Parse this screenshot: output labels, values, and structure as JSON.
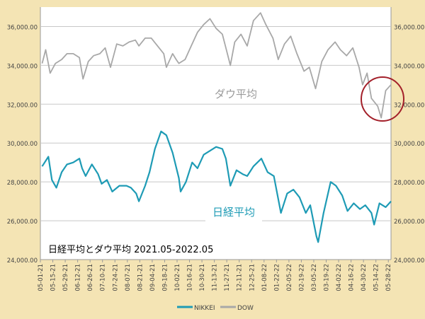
{
  "chart_data": {
    "type": "line",
    "title": "日経平均とダウ平均 2021.05-2022.05",
    "annotations": [
      "ダウ平均",
      "日経平均"
    ],
    "xlabel": "",
    "ylabel": "",
    "ylim": [
      24000,
      37000
    ],
    "y_ticks": [
      "24,000.00",
      "26,000.00",
      "28,000.00",
      "30,000.00",
      "32,000.00",
      "34,000.00",
      "36,000.00"
    ],
    "y_tick_values": [
      24000,
      26000,
      28000,
      30000,
      32000,
      34000,
      36000
    ],
    "x_tick_labels": [
      "05-01-21",
      "05-15-21",
      "05-29-21",
      "06-12-21",
      "06-26-21",
      "07-10-21",
      "07-24-21",
      "08-07-21",
      "08-21-21",
      "09-04-21",
      "09-18-21",
      "10-02-21",
      "10-16-21",
      "10-30-21",
      "11-13-21",
      "11-27-21",
      "12-11-21",
      "12-25-21",
      "01-08-22",
      "01-22-22",
      "02-05-22",
      "02-19-22",
      "03-05-22",
      "03-19-22",
      "04-02-22",
      "04-16-22",
      "04-30-22",
      "05-14-22",
      "05-28-22"
    ],
    "x_range": [
      "05-01-21",
      "05-31-22"
    ],
    "grid": "horizontal",
    "legend": "bottom",
    "highlight": {
      "shape": "circle",
      "color": "#a3202a",
      "at": "05-14-22 – 05-28-22"
    },
    "series": [
      {
        "name": "NIKKEI",
        "color": "#1e9bb5",
        "x": [
          "05-03-21",
          "05-10-21",
          "05-14-21",
          "05-19-21",
          "05-25-21",
          "05-31-21",
          "06-07-21",
          "06-14-21",
          "06-17-21",
          "06-21-21",
          "06-28-21",
          "07-05-21",
          "07-09-21",
          "07-15-21",
          "07-21-21",
          "07-29-21",
          "08-06-21",
          "08-11-21",
          "08-17-21",
          "08-20-21",
          "08-27-21",
          "09-01-21",
          "09-07-21",
          "09-14-21",
          "09-20-21",
          "09-27-21",
          "10-04-21",
          "10-06-21",
          "10-12-21",
          "10-19-21",
          "10-25-21",
          "11-01-21",
          "11-08-21",
          "11-15-21",
          "11-22-21",
          "11-26-21",
          "12-01-21",
          "12-08-21",
          "12-15-21",
          "12-20-21",
          "12-27-21",
          "01-05-22",
          "01-12-22",
          "01-19-22",
          "01-27-22",
          "02-03-22",
          "02-10-22",
          "02-17-22",
          "02-24-22",
          "03-01-22",
          "03-08-22",
          "03-10-22",
          "03-16-22",
          "03-24-22",
          "03-30-22",
          "04-06-22",
          "04-12-22",
          "04-19-22",
          "04-26-22",
          "05-02-22",
          "05-09-22",
          "05-12-22",
          "05-18-22",
          "05-25-22",
          "05-31-22"
        ],
        "values": [
          28800,
          29300,
          28100,
          27700,
          28500,
          28900,
          29000,
          29200,
          28700,
          28300,
          28900,
          28400,
          27900,
          28100,
          27500,
          27800,
          27800,
          27700,
          27400,
          27000,
          27800,
          28500,
          29700,
          30600,
          30400,
          29500,
          28200,
          27500,
          28000,
          29000,
          28700,
          29400,
          29600,
          29800,
          29700,
          29200,
          27800,
          28600,
          28400,
          28300,
          28800,
          29200,
          28500,
          28300,
          26400,
          27400,
          27600,
          27200,
          26400,
          26800,
          25200,
          24900,
          26400,
          28000,
          27800,
          27300,
          26500,
          26900,
          26600,
          26800,
          26400,
          25800,
          26900,
          26700,
          27000
        ]
      },
      {
        "name": "DOW",
        "color": "#a8a8a8",
        "x": [
          "05-03-21",
          "05-07-21",
          "05-12-21",
          "05-18-21",
          "05-25-21",
          "05-31-21",
          "06-07-21",
          "06-14-21",
          "06-18-21",
          "06-24-21",
          "06-30-21",
          "07-07-21",
          "07-13-21",
          "07-19-21",
          "07-26-21",
          "08-02-21",
          "08-09-21",
          "08-16-21",
          "08-20-21",
          "08-27-21",
          "09-03-21",
          "09-10-21",
          "09-17-21",
          "09-20-21",
          "09-27-21",
          "10-01-21",
          "10-04-21",
          "10-11-21",
          "10-18-21",
          "10-25-21",
          "11-01-21",
          "11-08-21",
          "11-15-21",
          "11-22-21",
          "11-26-21",
          "12-01-21",
          "12-06-21",
          "12-13-21",
          "12-20-21",
          "12-27-21",
          "01-04-22",
          "01-10-22",
          "01-18-22",
          "01-24-22",
          "01-31-22",
          "02-07-22",
          "02-14-22",
          "02-22-22",
          "02-28-22",
          "03-07-22",
          "03-14-22",
          "03-21-22",
          "03-29-22",
          "04-04-22",
          "04-11-22",
          "04-18-22",
          "04-25-22",
          "04-29-22",
          "05-04-22",
          "05-09-22",
          "05-16-22",
          "05-20-22",
          "05-25-22",
          "05-31-22"
        ],
        "values": [
          34100,
          34800,
          33600,
          34100,
          34300,
          34600,
          34600,
          34400,
          33300,
          34200,
          34500,
          34600,
          34900,
          33900,
          35100,
          35000,
          35200,
          35300,
          35000,
          35400,
          35400,
          35000,
          34600,
          33900,
          34600,
          34300,
          34100,
          34300,
          35000,
          35700,
          36100,
          36400,
          35900,
          35600,
          34900,
          34000,
          35200,
          35600,
          35000,
          36300,
          36700,
          36100,
          35400,
          34300,
          35100,
          35500,
          34600,
          33700,
          33900,
          32800,
          34200,
          34800,
          35200,
          34800,
          34500,
          34900,
          33900,
          33000,
          33600,
          32300,
          31900,
          31300,
          32700,
          33000
        ]
      }
    ]
  }
}
